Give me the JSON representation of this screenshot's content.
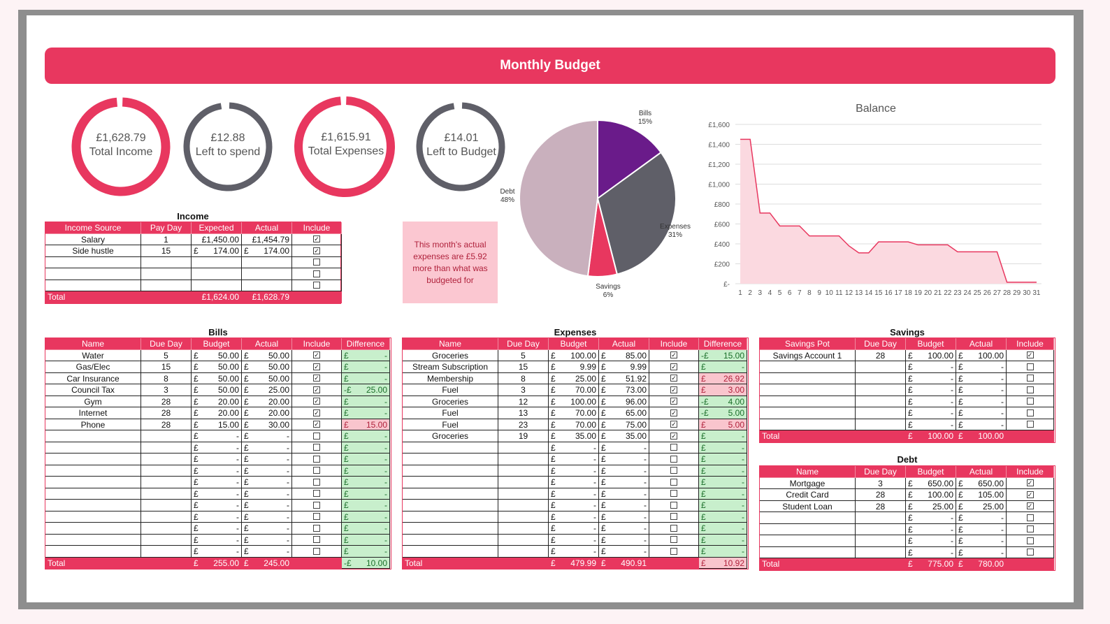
{
  "title": "Monthly Budget",
  "rings": [
    {
      "value": "£1,628.79",
      "label": "Total Income",
      "color": "#e8375f",
      "fraction": 1.0
    },
    {
      "value": "£12.88",
      "label": "Left to spend",
      "color": "#5f5f68",
      "fraction": 0.99
    },
    {
      "value": "£1,615.91",
      "label": "Total Expenses",
      "color": "#e8375f",
      "fraction": 1.0
    },
    {
      "value": "£14.01",
      "label": "Left to Budget",
      "color": "#5f5f68",
      "fraction": 0.99
    }
  ],
  "note": "This month's actual expenses are £5.92 more than what was budgeted for",
  "colors": {
    "accent": "#e8375f",
    "bills": "#6a1b8a",
    "expenses": "#5f5f68",
    "savings": "#e8375f",
    "debt": "#c9b0bd"
  },
  "pie": {
    "slices": [
      {
        "name": "Bills",
        "pct": "15%",
        "value": 15,
        "color": "#6a1b8a"
      },
      {
        "name": "Expenses",
        "pct": "31%",
        "value": 31,
        "color": "#5f5f68"
      },
      {
        "name": "Savings",
        "pct": "6%",
        "value": 6,
        "color": "#e8375f"
      },
      {
        "name": "Debt",
        "pct": "48%",
        "value": 48,
        "color": "#c9b0bd"
      }
    ]
  },
  "chart_data": {
    "type": "area",
    "title": "Balance",
    "x": [
      1,
      2,
      3,
      4,
      5,
      6,
      7,
      8,
      9,
      10,
      11,
      12,
      13,
      14,
      15,
      16,
      17,
      18,
      19,
      20,
      21,
      22,
      23,
      24,
      25,
      26,
      27,
      28,
      29,
      30,
      31
    ],
    "values": [
      1450,
      1450,
      710,
      710,
      580,
      580,
      580,
      480,
      480,
      480,
      480,
      380,
      310,
      310,
      420,
      420,
      420,
      420,
      390,
      390,
      390,
      390,
      320,
      320,
      320,
      320,
      320,
      15,
      15,
      15,
      15
    ],
    "y_ticks": [
      "£-",
      "£200",
      "£400",
      "£600",
      "£800",
      "£1,000",
      "£1,200",
      "£1,400",
      "£1,600"
    ],
    "ylim": [
      0,
      1600
    ],
    "grid": true
  },
  "income": {
    "title": "Income",
    "headers": [
      "Income Source",
      "Pay Day",
      "Expected",
      "Actual",
      "Include"
    ],
    "rows": [
      {
        "name": "Salary",
        "day": "1",
        "expected": "£1,450.00",
        "actual": "£1,454.79",
        "inc": true
      },
      {
        "name": "Side hustle",
        "day": "15",
        "expected": "174.00",
        "actual": "174.00",
        "inc": true
      },
      {
        "name": "",
        "day": "",
        "expected": "",
        "actual": "",
        "inc": false
      },
      {
        "name": "",
        "day": "",
        "expected": "",
        "actual": "",
        "inc": false
      },
      {
        "name": "",
        "day": "",
        "expected": "",
        "actual": "",
        "inc": false
      }
    ],
    "total_label": "Total",
    "total_expected": "£1,624.00",
    "total_actual": "£1,628.79"
  },
  "bills": {
    "title": "Bills",
    "headers": [
      "Name",
      "Due Day",
      "Budget",
      "Actual",
      "Include",
      "Difference"
    ],
    "rows": [
      {
        "name": "Water",
        "day": "5",
        "budget": "50.00",
        "actual": "50.00",
        "inc": true,
        "diff": "-",
        "neg": false
      },
      {
        "name": "Gas/Elec",
        "day": "15",
        "budget": "50.00",
        "actual": "50.00",
        "inc": true,
        "diff": "-",
        "neg": false
      },
      {
        "name": "Car Insurance",
        "day": "8",
        "budget": "50.00",
        "actual": "50.00",
        "inc": true,
        "diff": "-",
        "neg": false
      },
      {
        "name": "Council Tax",
        "day": "3",
        "budget": "50.00",
        "actual": "25.00",
        "inc": true,
        "diff": "25.00",
        "neg": false,
        "minus": true
      },
      {
        "name": "Gym",
        "day": "28",
        "budget": "20.00",
        "actual": "20.00",
        "inc": true,
        "diff": "-",
        "neg": false
      },
      {
        "name": "Internet",
        "day": "28",
        "budget": "20.00",
        "actual": "20.00",
        "inc": true,
        "diff": "-",
        "neg": false
      },
      {
        "name": "Phone",
        "day": "28",
        "budget": "15.00",
        "actual": "30.00",
        "inc": true,
        "diff": "15.00",
        "neg": true
      },
      {
        "name": "",
        "day": "",
        "budget": "-",
        "actual": "-",
        "inc": false,
        "diff": "-",
        "neg": false
      },
      {
        "name": "",
        "day": "",
        "budget": "-",
        "actual": "-",
        "inc": false,
        "diff": "-",
        "neg": false
      },
      {
        "name": "",
        "day": "",
        "budget": "-",
        "actual": "-",
        "inc": false,
        "diff": "-",
        "neg": false
      },
      {
        "name": "",
        "day": "",
        "budget": "-",
        "actual": "-",
        "inc": false,
        "diff": "-",
        "neg": false
      },
      {
        "name": "",
        "day": "",
        "budget": "-",
        "actual": "-",
        "inc": false,
        "diff": "-",
        "neg": false
      },
      {
        "name": "",
        "day": "",
        "budget": "-",
        "actual": "-",
        "inc": false,
        "diff": "-",
        "neg": false
      },
      {
        "name": "",
        "day": "",
        "budget": "-",
        "actual": "-",
        "inc": false,
        "diff": "-",
        "neg": false
      },
      {
        "name": "",
        "day": "",
        "budget": "-",
        "actual": "-",
        "inc": false,
        "diff": "-",
        "neg": false
      },
      {
        "name": "",
        "day": "",
        "budget": "-",
        "actual": "-",
        "inc": false,
        "diff": "-",
        "neg": false
      },
      {
        "name": "",
        "day": "",
        "budget": "-",
        "actual": "-",
        "inc": false,
        "diff": "-",
        "neg": false
      },
      {
        "name": "",
        "day": "",
        "budget": "-",
        "actual": "-",
        "inc": false,
        "diff": "-",
        "neg": false
      }
    ],
    "total_label": "Total",
    "total_budget": "255.00",
    "total_actual": "245.00",
    "total_diff": "10.00"
  },
  "expenses": {
    "title": "Expenses",
    "headers": [
      "Name",
      "Due Day",
      "Budget",
      "Actual",
      "Include",
      "Difference"
    ],
    "rows": [
      {
        "name": "Groceries",
        "day": "5",
        "budget": "100.00",
        "actual": "85.00",
        "inc": true,
        "diff": "15.00",
        "neg": false,
        "minus": true
      },
      {
        "name": "Stream Subscription",
        "day": "15",
        "budget": "9.99",
        "actual": "9.99",
        "inc": true,
        "diff": "-",
        "neg": false
      },
      {
        "name": "Membership",
        "day": "8",
        "budget": "25.00",
        "actual": "51.92",
        "inc": true,
        "diff": "26.92",
        "neg": true
      },
      {
        "name": "Fuel",
        "day": "3",
        "budget": "70.00",
        "actual": "73.00",
        "inc": true,
        "diff": "3.00",
        "neg": true
      },
      {
        "name": "Groceries",
        "day": "12",
        "budget": "100.00",
        "actual": "96.00",
        "inc": true,
        "diff": "4.00",
        "neg": false,
        "minus": true
      },
      {
        "name": "Fuel",
        "day": "13",
        "budget": "70.00",
        "actual": "65.00",
        "inc": true,
        "diff": "5.00",
        "neg": false,
        "minus": true
      },
      {
        "name": "Fuel",
        "day": "23",
        "budget": "70.00",
        "actual": "75.00",
        "inc": true,
        "diff": "5.00",
        "neg": true
      },
      {
        "name": "Groceries",
        "day": "19",
        "budget": "35.00",
        "actual": "35.00",
        "inc": true,
        "diff": "-",
        "neg": false
      },
      {
        "name": "",
        "day": "",
        "budget": "-",
        "actual": "-",
        "inc": false,
        "diff": "-",
        "neg": false
      },
      {
        "name": "",
        "day": "",
        "budget": "-",
        "actual": "-",
        "inc": false,
        "diff": "-",
        "neg": false
      },
      {
        "name": "",
        "day": "",
        "budget": "-",
        "actual": "-",
        "inc": false,
        "diff": "-",
        "neg": false
      },
      {
        "name": "",
        "day": "",
        "budget": "-",
        "actual": "-",
        "inc": false,
        "diff": "-",
        "neg": false
      },
      {
        "name": "",
        "day": "",
        "budget": "-",
        "actual": "-",
        "inc": false,
        "diff": "-",
        "neg": false
      },
      {
        "name": "",
        "day": "",
        "budget": "-",
        "actual": "-",
        "inc": false,
        "diff": "-",
        "neg": false
      },
      {
        "name": "",
        "day": "",
        "budget": "-",
        "actual": "-",
        "inc": false,
        "diff": "-",
        "neg": false
      },
      {
        "name": "",
        "day": "",
        "budget": "-",
        "actual": "-",
        "inc": false,
        "diff": "-",
        "neg": false
      },
      {
        "name": "",
        "day": "",
        "budget": "-",
        "actual": "-",
        "inc": false,
        "diff": "-",
        "neg": false
      },
      {
        "name": "",
        "day": "",
        "budget": "-",
        "actual": "-",
        "inc": false,
        "diff": "-",
        "neg": false
      }
    ],
    "total_label": "Total",
    "total_budget": "479.99",
    "total_actual": "490.91",
    "total_diff": "10.92"
  },
  "savings": {
    "title": "Savings",
    "headers": [
      "Savings Pot",
      "Due Day",
      "Budget",
      "Actual",
      "Include"
    ],
    "rows": [
      {
        "name": "Savings Account 1",
        "day": "28",
        "budget": "100.00",
        "actual": "100.00",
        "inc": true
      },
      {
        "name": "",
        "day": "",
        "budget": "-",
        "actual": "-",
        "inc": false
      },
      {
        "name": "",
        "day": "",
        "budget": "-",
        "actual": "-",
        "inc": false
      },
      {
        "name": "",
        "day": "",
        "budget": "-",
        "actual": "-",
        "inc": false
      },
      {
        "name": "",
        "day": "",
        "budget": "-",
        "actual": "-",
        "inc": false
      },
      {
        "name": "",
        "day": "",
        "budget": "-",
        "actual": "-",
        "inc": false
      },
      {
        "name": "",
        "day": "",
        "budget": "-",
        "actual": "-",
        "inc": false
      }
    ],
    "total_label": "Total",
    "total_budget": "100.00",
    "total_actual": "100.00"
  },
  "debt": {
    "title": "Debt",
    "headers": [
      "Name",
      "Due Day",
      "Budget",
      "Actual",
      "Include"
    ],
    "rows": [
      {
        "name": "Mortgage",
        "day": "3",
        "budget": "650.00",
        "actual": "650.00",
        "inc": true
      },
      {
        "name": "Credit Card",
        "day": "28",
        "budget": "100.00",
        "actual": "105.00",
        "inc": true
      },
      {
        "name": "Student Loan",
        "day": "28",
        "budget": "25.00",
        "actual": "25.00",
        "inc": true
      },
      {
        "name": "",
        "day": "",
        "budget": "-",
        "actual": "-",
        "inc": false
      },
      {
        "name": "",
        "day": "",
        "budget": "-",
        "actual": "-",
        "inc": false
      },
      {
        "name": "",
        "day": "",
        "budget": "-",
        "actual": "-",
        "inc": false
      },
      {
        "name": "",
        "day": "",
        "budget": "-",
        "actual": "-",
        "inc": false
      }
    ],
    "total_label": "Total",
    "total_budget": "775.00",
    "total_actual": "780.00"
  },
  "currency": "£"
}
